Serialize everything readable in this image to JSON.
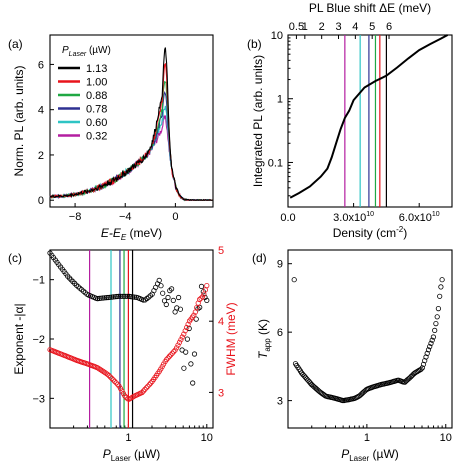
{
  "chart_data": [
    {
      "panel": "a",
      "panel_label": "(a)",
      "type": "line",
      "xlabel_main": "E-E",
      "xlabel_sub": "E",
      "xlabel_unit": " (meV)",
      "ylabel": "Norm. PL (arb. units)",
      "xlim": [
        -10,
        3
      ],
      "ylim": [
        -0.3,
        7.3
      ],
      "xticks": [
        -8,
        -4,
        0
      ],
      "yticks": [
        0,
        2,
        4,
        6
      ],
      "legend_title_main": "P",
      "legend_title_sub": "Laser",
      "legend_title_unit": " (µW)",
      "legend_position": "top-left",
      "series": [
        {
          "name": "1.13",
          "color": "#000000",
          "peak": 6.9,
          "x": [
            -10,
            -8,
            -6,
            -4,
            -3,
            -2,
            -1.5,
            -1,
            -0.8,
            -0.6,
            -0.3,
            0,
            0.5,
            1,
            2,
            3
          ],
          "y": [
            0.05,
            0.3,
            0.9,
            2.0,
            2.9,
            4.2,
            5.3,
            6.5,
            6.9,
            6.5,
            5.0,
            2.5,
            0.5,
            0.1,
            0.02,
            0.0
          ]
        },
        {
          "name": "1.00",
          "color": "#e8141c",
          "peak": 6.1
        },
        {
          "name": "0.88",
          "color": "#1fa843",
          "peak": 5.5
        },
        {
          "name": "0.78",
          "color": "#2e3192",
          "peak": 4.9
        },
        {
          "name": "0.60",
          "color": "#2ec4c4",
          "peak": 4.3
        },
        {
          "name": "0.32",
          "color": "#b41ea0",
          "peak": 3.8
        }
      ]
    },
    {
      "panel": "b",
      "panel_label": "(b)",
      "type": "line",
      "xlabel": "Density (cm",
      "xlabel_sup": "-2",
      "xlabel_close": ")",
      "ylabel": "Integrated PL (arb. units)",
      "top_axis_label": "PL Blue shift ΔE (meV)",
      "top_ticks": [
        "0.5",
        "1",
        "2",
        "3",
        "4",
        "5",
        "6"
      ],
      "top_tick_values": [
        0.5,
        1,
        2,
        3,
        4,
        5,
        6
      ],
      "xlim": [
        0,
        7.5
      ],
      "x_tick_labels": [
        "0.0",
        "3.0x10",
        "6.0x10"
      ],
      "x_tick_exp": [
        "",
        "10",
        "10"
      ],
      "x_tick_values": [
        0,
        3.0,
        6.0
      ],
      "ylog": true,
      "ylim": [
        0.02,
        10
      ],
      "y_tick_labels": [
        "0.1",
        "1",
        "10"
      ],
      "y_tick_values": [
        0.1,
        1,
        10
      ],
      "x_scale_note": "x in units of 1e10 cm^-2",
      "x": [
        0.1,
        0.5,
        1.0,
        1.5,
        1.8,
        2.0,
        2.2,
        2.4,
        2.6,
        2.8,
        3.0,
        3.5,
        4.0,
        4.5,
        5.0,
        5.5,
        6.0,
        6.5,
        7.0,
        7.3
      ],
      "y": [
        0.028,
        0.033,
        0.042,
        0.06,
        0.08,
        0.12,
        0.2,
        0.33,
        0.5,
        0.65,
        0.95,
        1.5,
        1.9,
        2.3,
        3.1,
        4.3,
        5.8,
        7.2,
        8.8,
        10
      ],
      "markers": [
        {
          "x": 2.6,
          "color": "#b41ea0"
        },
        {
          "x": 3.3,
          "color": "#2ec4c4"
        },
        {
          "x": 3.7,
          "color": "#2e3192"
        },
        {
          "x": 4.0,
          "color": "#1fa843"
        },
        {
          "x": 4.2,
          "color": "#e8141c"
        },
        {
          "x": 4.5,
          "color": "#000000"
        }
      ]
    },
    {
      "panel": "c",
      "panel_label": "(c)",
      "type": "scatter",
      "xlabel_main": "P",
      "xlabel_sub": "Laser",
      "xlabel_unit": " (µW)",
      "ylabel_left": "Exponent -|α|",
      "ylabel_right": "FWHM (meV)",
      "right_color": "#e8141c",
      "xlog": true,
      "xlim": [
        0.1,
        12
      ],
      "x_tick_labels": [
        "1",
        "10"
      ],
      "x_tick_values": [
        1,
        10
      ],
      "ylim_left": [
        -3.5,
        -0.5
      ],
      "yticks_left": [
        -3,
        -2,
        -1
      ],
      "ylim_right": [
        2.5,
        5
      ],
      "yticks_right": [
        3,
        4,
        5
      ],
      "series": [
        {
          "name": "Exponent",
          "color": "#000000",
          "axis": "left",
          "x": [
            0.1,
            0.13,
            0.17,
            0.22,
            0.3,
            0.4,
            0.55,
            0.75,
            1.0,
            1.3,
            1.6,
            2.0,
            2.5,
            3.0,
            3.5,
            4.0,
            4.5,
            5.0,
            5.5,
            6.0,
            6.5,
            7.0,
            7.5,
            8.0,
            8.5,
            9.0,
            9.5,
            10
          ],
          "y": [
            -0.55,
            -0.75,
            -0.95,
            -1.1,
            -1.25,
            -1.32,
            -1.3,
            -1.28,
            -1.28,
            -1.3,
            -1.35,
            -1.25,
            -1.0,
            -1.45,
            -1.1,
            -1.6,
            -1.2,
            -2.6,
            -2.1,
            -1.8,
            -2.9,
            -2.2,
            -1.4,
            -1.6,
            -1.1,
            -1.2,
            -1.3,
            -1.35
          ]
        },
        {
          "name": "FWHM",
          "color": "#e8141c",
          "axis": "right",
          "x": [
            0.1,
            0.13,
            0.17,
            0.22,
            0.3,
            0.4,
            0.55,
            0.75,
            0.9,
            1.0,
            1.2,
            1.5,
            2.0,
            2.5,
            3.0,
            4.0,
            5.0,
            6.0,
            7.0,
            8.0,
            9.0,
            10
          ],
          "y": [
            3.6,
            3.55,
            3.5,
            3.45,
            3.4,
            3.35,
            3.25,
            3.1,
            2.95,
            2.9,
            2.95,
            3.0,
            3.15,
            3.3,
            3.45,
            3.6,
            3.8,
            4.0,
            4.1,
            4.3,
            4.35,
            4.5
          ]
        }
      ],
      "markers": [
        {
          "x": 0.32,
          "color": "#b41ea0"
        },
        {
          "x": 0.6,
          "color": "#2ec4c4"
        },
        {
          "x": 0.78,
          "color": "#2e3192"
        },
        {
          "x": 0.88,
          "color": "#1fa843"
        },
        {
          "x": 1.0,
          "color": "#e8141c"
        },
        {
          "x": 1.13,
          "color": "#000000"
        }
      ]
    },
    {
      "panel": "d",
      "panel_label": "(d)",
      "type": "scatter",
      "xlabel_main": "P",
      "xlabel_sub": "Laser",
      "xlabel_unit": " (µW)",
      "ylabel_main": "T",
      "ylabel_sub": "app",
      "ylabel_unit": " (K)",
      "xlog": true,
      "xlim": [
        0.1,
        12
      ],
      "x_tick_labels": [
        "1",
        "10"
      ],
      "x_tick_values": [
        1,
        10
      ],
      "ylim": [
        1.8,
        9.6
      ],
      "yticks": [
        3,
        6,
        9
      ],
      "series": [
        {
          "name": "T_app",
          "color": "#000000",
          "x": [
            0.12,
            0.15,
            0.2,
            0.25,
            0.3,
            0.4,
            0.5,
            0.6,
            0.7,
            0.8,
            1.0,
            1.2,
            1.5,
            2.0,
            2.5,
            3.0,
            3.5,
            4.0,
            5.0,
            6.0,
            7.0,
            8.0,
            8.5,
            9.0
          ],
          "y": [
            4.7,
            4.2,
            3.7,
            3.4,
            3.2,
            3.1,
            3.0,
            3.05,
            3.1,
            3.2,
            3.5,
            3.6,
            3.7,
            3.8,
            3.9,
            3.8,
            4.0,
            4.2,
            4.4,
            5.2,
            5.8,
            6.9,
            7.8,
            8.3
          ]
        }
      ]
    }
  ]
}
